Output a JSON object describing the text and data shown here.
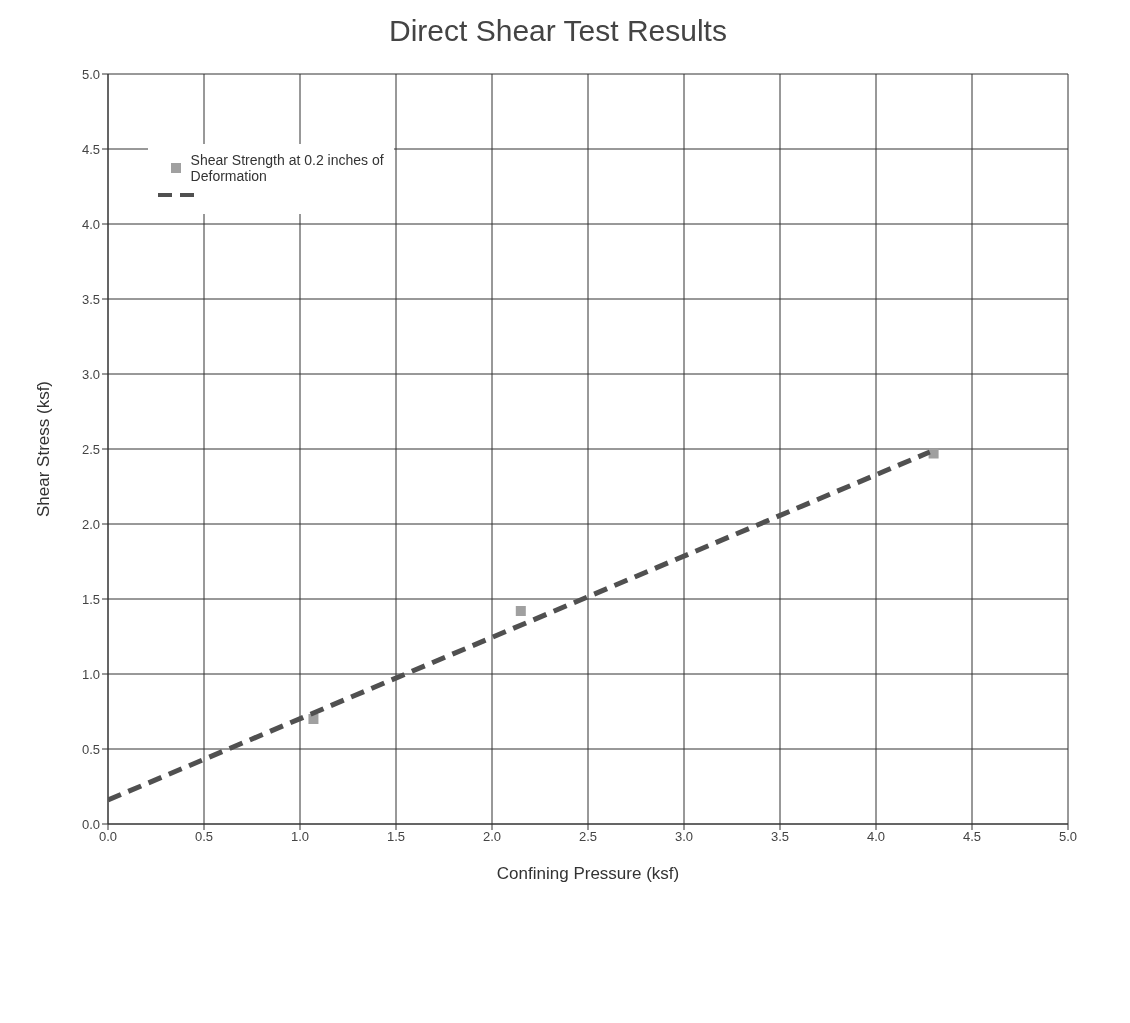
{
  "chart_data": {
    "type": "scatter",
    "title": "Direct Shear Test Results",
    "xlabel": "Confining Pressure (ksf)",
    "ylabel": "Shear Stress (ksf)",
    "xlim": [
      0,
      5
    ],
    "ylim": [
      0,
      5
    ],
    "xticks": [
      {
        "value": 0,
        "label": "0.0"
      },
      {
        "value": 0.5,
        "label": "0.5"
      },
      {
        "value": 1,
        "label": "1.0"
      },
      {
        "value": 1.5,
        "label": "1.5"
      },
      {
        "value": 2,
        "label": "2.0"
      },
      {
        "value": 2.5,
        "label": "2.5"
      },
      {
        "value": 3,
        "label": "3.0"
      },
      {
        "value": 3.5,
        "label": "3.5"
      },
      {
        "value": 4,
        "label": "4.0"
      },
      {
        "value": 4.5,
        "label": "4.5"
      },
      {
        "value": 5,
        "label": "5.0"
      }
    ],
    "yticks": [
      {
        "value": 0,
        "label": "0.0"
      },
      {
        "value": 0.5,
        "label": "0.5"
      },
      {
        "value": 1,
        "label": "1.0"
      },
      {
        "value": 1.5,
        "label": "1.5"
      },
      {
        "value": 2,
        "label": "2.0"
      },
      {
        "value": 2.5,
        "label": "2.5"
      },
      {
        "value": 3,
        "label": "3.0"
      },
      {
        "value": 3.5,
        "label": "3.5"
      },
      {
        "value": 4,
        "label": "4.0"
      },
      {
        "value": 4.5,
        "label": "4.5"
      },
      {
        "value": 5,
        "label": "5.0"
      }
    ],
    "grid": true,
    "legend": "top left",
    "series": [
      {
        "name": "Shear Strength at 0.2 inches of Deformation",
        "marker": "square",
        "color": "#a0a0a0",
        "x": [
          1.07,
          2.15,
          4.3
        ],
        "values": [
          0.7,
          1.42,
          2.47
        ]
      },
      {
        "type": "line",
        "line_style": "dashed",
        "marker": "none",
        "color": "#505050",
        "x": [
          0,
          4.28
        ],
        "values": [
          0.16,
          2.48
        ]
      }
    ]
  }
}
